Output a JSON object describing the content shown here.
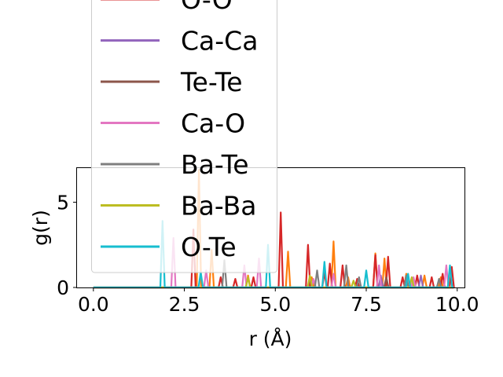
{
  "chart_data": {
    "type": "line",
    "xlabel": "r (Å)",
    "ylabel": "g(r)",
    "xlim": [
      -0.45,
      10.2
    ],
    "ylim": [
      0,
      7
    ],
    "xticks": [
      0.0,
      2.5,
      5.0,
      7.5,
      10.0
    ],
    "xtick_labels": [
      "0.0",
      "2.5",
      "5.0",
      "7.5",
      "10.0"
    ],
    "yticks": [
      0,
      5
    ],
    "ytick_labels": [
      "0",
      "5"
    ],
    "legend_position": "upper-left, overlapping the plot",
    "legend": [
      {
        "label": "O-O",
        "color": "#d62728"
      },
      {
        "label": "Ca-Ca",
        "color": "#9467bd"
      },
      {
        "label": "Te-Te",
        "color": "#8c564b"
      },
      {
        "label": "Ca-O",
        "color": "#e377c2"
      },
      {
        "label": "Ba-Te",
        "color": "#7f7f7f"
      },
      {
        "label": "Ba-Ba",
        "color": "#bcbd22"
      },
      {
        "label": "O-Te",
        "color": "#17becf"
      }
    ],
    "series": [
      {
        "name": "",
        "color": "#ff7f0e",
        "peaks": [
          [
            2.9,
            6.9
          ],
          [
            3.25,
            2.2
          ],
          [
            4.25,
            0.7
          ],
          [
            5.35,
            2.1
          ],
          [
            6.0,
            0.6
          ],
          [
            6.6,
            2.7
          ],
          [
            7.0,
            0.6
          ],
          [
            7.75,
            2.0
          ],
          [
            8.0,
            1.7
          ],
          [
            8.6,
            0.8
          ],
          [
            9.1,
            0.7
          ],
          [
            9.55,
            0.6
          ]
        ]
      },
      {
        "name": "O-O",
        "color": "#d62728",
        "peaks": [
          [
            2.75,
            3.4
          ],
          [
            3.5,
            0.6
          ],
          [
            3.9,
            0.5
          ],
          [
            4.4,
            0.6
          ],
          [
            5.15,
            4.4
          ],
          [
            5.9,
            2.5
          ],
          [
            6.35,
            0.9
          ],
          [
            6.5,
            1.4
          ],
          [
            6.85,
            1.3
          ],
          [
            7.25,
            0.5
          ],
          [
            7.75,
            1.9
          ],
          [
            8.1,
            1.8
          ],
          [
            8.5,
            0.6
          ],
          [
            8.9,
            0.7
          ],
          [
            9.3,
            0.6
          ],
          [
            9.6,
            0.8
          ],
          [
            9.85,
            1.2
          ]
        ]
      },
      {
        "name": "Ca-Ca",
        "color": "#9467bd",
        "peaks": [
          [
            5.95,
            0.6
          ],
          [
            7.9,
            0.7
          ],
          [
            9.0,
            0.7
          ]
        ]
      },
      {
        "name": "Te-Te",
        "color": "#8c564b",
        "peaks": [
          [
            5.95,
            0.5
          ],
          [
            8.05,
            0.6
          ]
        ]
      },
      {
        "name": "Ca-O",
        "color": "#e377c2",
        "peaks": [
          [
            2.2,
            2.9
          ],
          [
            3.1,
            1.0
          ],
          [
            4.15,
            1.3
          ],
          [
            4.55,
            1.7
          ],
          [
            6.05,
            0.5
          ],
          [
            6.6,
            0.8
          ],
          [
            7.85,
            1.3
          ],
          [
            8.8,
            0.6
          ],
          [
            9.7,
            1.3
          ]
        ]
      },
      {
        "name": "Ba-Te",
        "color": "#7f7f7f",
        "peaks": [
          [
            3.6,
            1.6
          ],
          [
            6.15,
            1.0
          ],
          [
            6.95,
            1.3
          ],
          [
            7.3,
            0.6
          ],
          [
            8.6,
            0.7
          ],
          [
            9.5,
            0.5
          ]
        ]
      },
      {
        "name": "Ba-Ba",
        "color": "#bcbd22",
        "peaks": [
          [
            4.25,
            0.6
          ],
          [
            5.95,
            0.7
          ],
          [
            7.15,
            0.4
          ],
          [
            8.75,
            0.6
          ]
        ]
      },
      {
        "name": "O-Te",
        "color": "#17becf",
        "peaks": [
          [
            1.9,
            3.9
          ],
          [
            2.95,
            0.9
          ],
          [
            4.8,
            2.5
          ],
          [
            6.35,
            1.5
          ],
          [
            7.5,
            1.0
          ],
          [
            8.65,
            0.8
          ],
          [
            9.8,
            1.3
          ]
        ]
      }
    ]
  }
}
